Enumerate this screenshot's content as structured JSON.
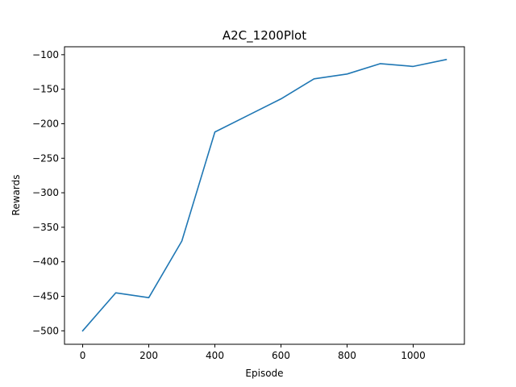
{
  "chart_data": {
    "type": "line",
    "title": "A2C_1200Plot",
    "xlabel": "Episode",
    "ylabel": "Rewards",
    "xlim": [
      -55,
      1155
    ],
    "ylim": [
      -519.5,
      -88.5
    ],
    "xticks": [
      0,
      200,
      400,
      600,
      800,
      1000
    ],
    "xtick_labels": [
      "0",
      "200",
      "400",
      "600",
      "800",
      "1000"
    ],
    "yticks": [
      -500,
      -450,
      -400,
      -350,
      -300,
      -250,
      -200,
      -150,
      -100
    ],
    "ytick_labels": [
      "−500",
      "−450",
      "−400",
      "−350",
      "−300",
      "−250",
      "−200",
      "−150",
      "−100"
    ],
    "grid": false,
    "series": [
      {
        "color": "#1f77b4",
        "x": [
          0,
          100,
          200,
          300,
          400,
          500,
          600,
          700,
          800,
          900,
          1000,
          1100
        ],
        "y": [
          -500,
          -445,
          -452,
          -370,
          -212,
          -188,
          -164,
          -135,
          -128,
          -113,
          -117,
          -107
        ]
      }
    ]
  }
}
